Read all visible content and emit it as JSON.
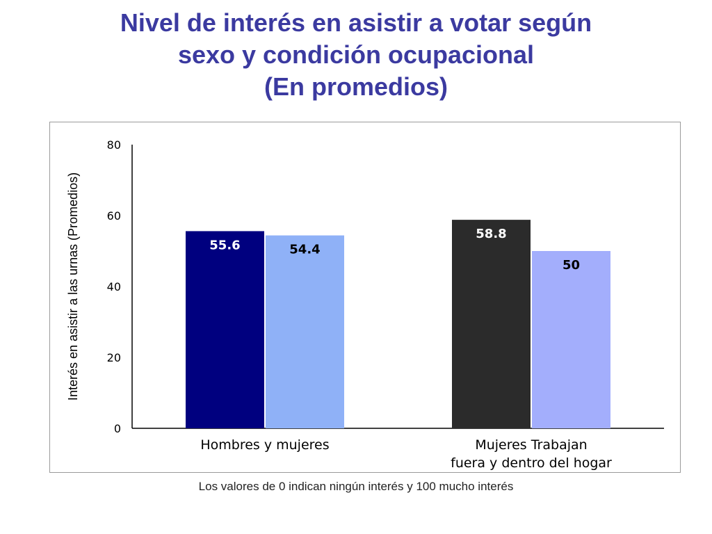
{
  "title_lines": [
    "Nivel de interés en asistir a votar según",
    "sexo y condición ocupacional",
    "(En promedios)"
  ],
  "footnote": "Los valores de 0 indican ningún interés y 100 mucho interés",
  "chart_data": {
    "type": "bar",
    "ylabel": "Interés en asistir a las urnas (Promedios)",
    "ylim": [
      0,
      80
    ],
    "yticks": [
      "0",
      "20",
      "40",
      "60",
      "80"
    ],
    "grid": false,
    "categories": [
      [
        "Hombres y mujeres"
      ],
      [
        "Mujeres Trabajan",
        "fuera y dentro del hogar"
      ]
    ],
    "groups": [
      {
        "bars": [
          {
            "value": 55.6,
            "label": "55.6",
            "color": "#00007f",
            "label_color": "#ffffff"
          },
          {
            "value": 54.4,
            "label": "54.4",
            "color": "#8fb1f7",
            "label_color": "#000000"
          }
        ]
      },
      {
        "bars": [
          {
            "value": 58.8,
            "label": "58.8",
            "color": "#2b2b2b",
            "label_color": "#ffffff"
          },
          {
            "value": 50,
            "label": "50",
            "color": "#a3aefc",
            "label_color": "#000000"
          }
        ]
      }
    ]
  }
}
